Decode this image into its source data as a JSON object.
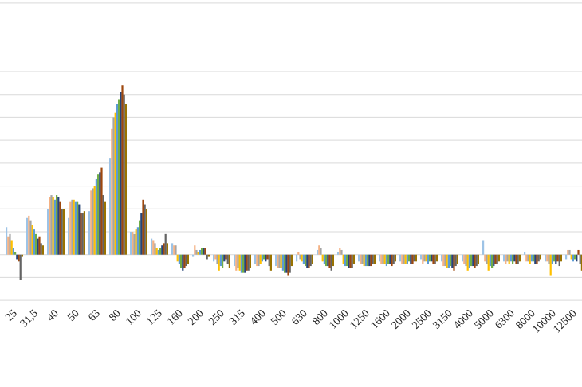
{
  "chart_data": {
    "type": "bar",
    "categories": [
      "25",
      "31,5",
      "40",
      "50",
      "63",
      "80",
      "100",
      "125",
      "160",
      "200",
      "250",
      "315",
      "400",
      "500",
      "630",
      "800",
      "1000",
      "1250",
      "1600",
      "2000",
      "2500",
      "3150",
      "4000",
      "5000",
      "6300",
      "8000",
      "10000",
      "12500"
    ],
    "series": [
      {
        "color": "#9dc3e6",
        "values": [
          1.2,
          1.6,
          2.0,
          1.6,
          1.9,
          4.2,
          1.0,
          0.7,
          0.5,
          -0.1,
          -0.3,
          -0.5,
          -0.4,
          -0.5,
          -0.3,
          0.2,
          0.1,
          -0.3,
          -0.3,
          -0.3,
          -0.2,
          -0.3,
          -0.3,
          0.6,
          -0.3,
          0.1,
          -0.3,
          -0.2
        ]
      },
      {
        "color": "#f4b183",
        "values": [
          0.8,
          1.7,
          2.5,
          2.3,
          2.8,
          5.5,
          1.0,
          0.6,
          0.4,
          0.4,
          -0.2,
          -0.7,
          -0.5,
          -0.6,
          0.1,
          0.4,
          0.3,
          -0.4,
          -0.4,
          -0.4,
          -0.4,
          -0.5,
          -0.4,
          -0.3,
          -0.4,
          -0.3,
          -0.3,
          0.2
        ]
      },
      {
        "color": "#a5a5a5",
        "values": [
          0.9,
          1.5,
          2.6,
          2.4,
          2.9,
          6.0,
          0.9,
          0.5,
          0.4,
          0.2,
          -0.4,
          -0.6,
          -0.5,
          -0.6,
          -0.2,
          0.3,
          0.2,
          -0.4,
          -0.4,
          -0.4,
          -0.3,
          -0.5,
          -0.5,
          -0.4,
          -0.3,
          -0.3,
          -0.4,
          0.2
        ]
      },
      {
        "color": "#ffc000",
        "values": [
          0.6,
          1.3,
          2.5,
          2.4,
          3.0,
          6.2,
          1.1,
          0.3,
          -0.3,
          0.1,
          -0.7,
          -0.7,
          -0.4,
          -0.6,
          -0.3,
          -0.3,
          -0.4,
          -0.5,
          -0.4,
          -0.4,
          -0.3,
          -0.6,
          -0.7,
          -0.7,
          -0.4,
          -0.4,
          -0.9,
          -0.2
        ]
      },
      {
        "color": "#5b9bd5",
        "values": [
          0.3,
          1.1,
          2.4,
          2.3,
          3.3,
          6.6,
          1.2,
          0.2,
          -0.4,
          0.2,
          -0.5,
          -0.8,
          -0.3,
          -0.7,
          -0.4,
          -0.4,
          -0.5,
          -0.5,
          -0.5,
          -0.4,
          -0.4,
          -0.6,
          -0.6,
          -0.5,
          -0.3,
          -0.3,
          -0.4,
          -0.3
        ]
      },
      {
        "color": "#70ad47",
        "values": [
          0.1,
          0.9,
          2.6,
          2.3,
          3.5,
          6.8,
          1.5,
          0.3,
          -0.6,
          0.3,
          -0.6,
          -0.8,
          -0.2,
          -0.8,
          -0.5,
          -0.5,
          -0.5,
          -0.5,
          -0.4,
          -0.3,
          -0.3,
          -0.5,
          -0.5,
          -0.6,
          -0.4,
          -0.3,
          -0.3,
          -0.2
        ]
      },
      {
        "color": "#264478",
        "values": [
          -0.2,
          0.7,
          2.5,
          2.2,
          3.6,
          7.1,
          1.8,
          0.4,
          -0.7,
          0.3,
          -0.3,
          -0.8,
          -0.3,
          -0.8,
          -0.6,
          -0.5,
          -0.6,
          -0.5,
          -0.4,
          -0.4,
          -0.3,
          -0.6,
          -0.5,
          -0.5,
          -0.3,
          -0.4,
          -0.4,
          -0.3
        ]
      },
      {
        "color": "#9e480e",
        "values": [
          -0.3,
          0.8,
          2.3,
          1.8,
          3.8,
          7.4,
          2.4,
          0.5,
          -0.6,
          0.3,
          -0.2,
          -0.7,
          -0.2,
          -0.9,
          -0.6,
          -0.6,
          -0.6,
          -0.5,
          -0.5,
          -0.4,
          -0.4,
          -0.7,
          -0.6,
          -0.4,
          -0.4,
          -0.4,
          -0.3,
          0.2
        ]
      },
      {
        "color": "#636363",
        "values": [
          -1.1,
          0.5,
          2.0,
          1.8,
          2.6,
          7.0,
          2.2,
          0.9,
          -0.5,
          -0.2,
          -0.4,
          -0.7,
          -0.5,
          -0.8,
          -0.5,
          -0.7,
          -0.6,
          -0.4,
          -0.4,
          -0.3,
          -0.4,
          -0.5,
          -0.5,
          -0.4,
          -0.4,
          -0.3,
          -0.5,
          -0.4
        ]
      },
      {
        "color": "#997300",
        "values": [
          -0.1,
          0.4,
          2.0,
          1.9,
          2.3,
          6.6,
          2.0,
          0.5,
          -0.4,
          -0.1,
          -0.6,
          -0.6,
          -0.7,
          -0.5,
          -0.4,
          -0.5,
          -0.4,
          -0.4,
          -0.3,
          -0.3,
          -0.3,
          -0.4,
          -0.4,
          -0.3,
          -0.3,
          -0.2,
          -0.3,
          -0.7
        ]
      }
    ],
    "ylim": [
      -2.1,
      11.1
    ],
    "yticks": [
      -2,
      -1,
      0,
      1,
      2,
      3,
      4,
      5,
      6,
      7,
      8,
      11
    ],
    "grid": true
  }
}
